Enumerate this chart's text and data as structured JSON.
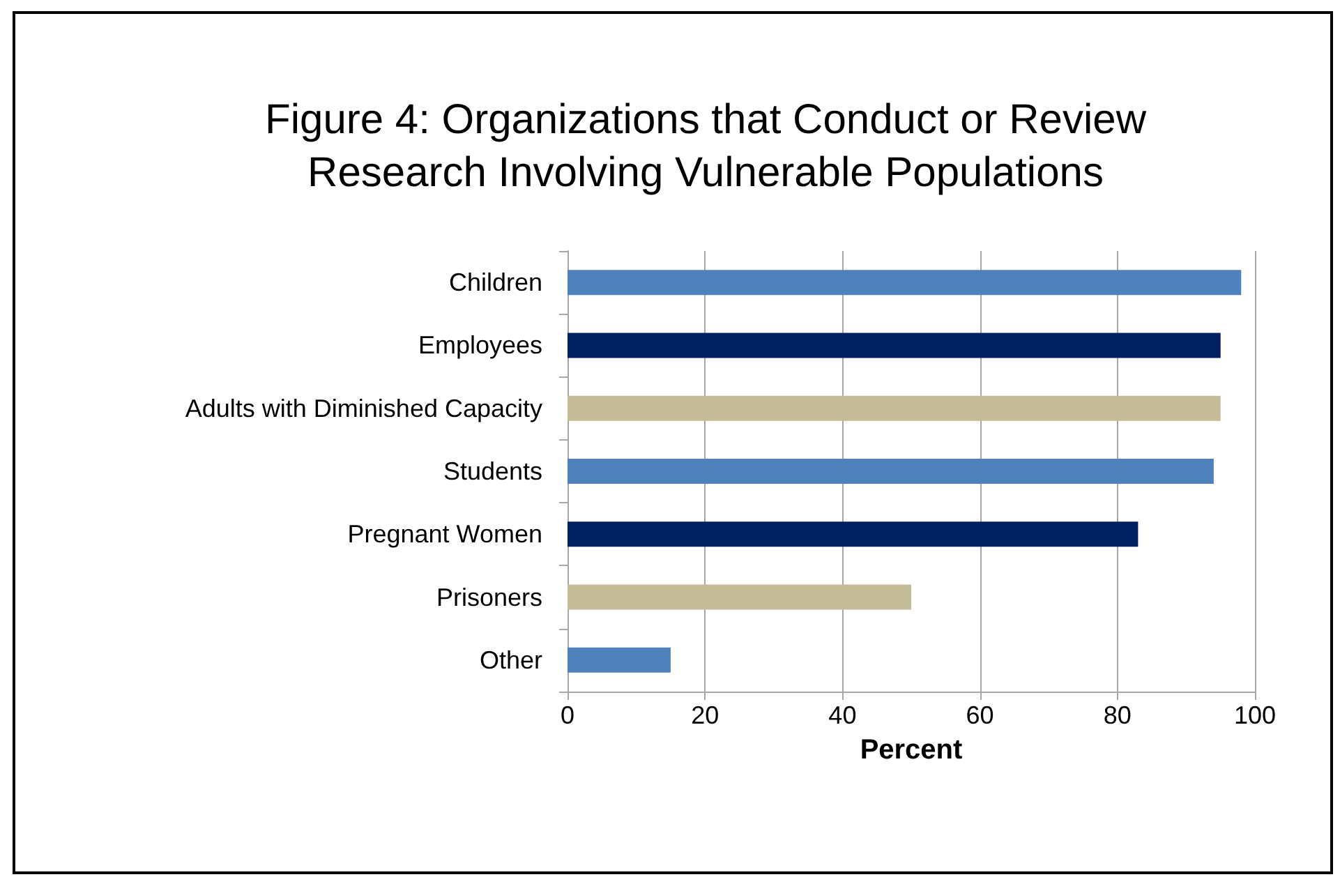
{
  "chart_data": {
    "type": "bar",
    "orientation": "horizontal",
    "title": "Figure 4: Organizations that Conduct or Review\nResearch Involving Vulnerable Populations",
    "xlabel": "Percent",
    "categories": [
      "Children",
      "Employees",
      "Adults with Diminished Capacity",
      "Students",
      "Pregnant Women",
      "Prisoners",
      "Other"
    ],
    "values": [
      98,
      95,
      95,
      94,
      83,
      50,
      15
    ],
    "colors": [
      "#4f81bd",
      "#002060",
      "#c4bd97",
      "#4f81bd",
      "#002060",
      "#c4bd97",
      "#4f81bd"
    ],
    "xlim": [
      0,
      100
    ],
    "xticks": [
      0,
      20,
      40,
      60,
      80,
      100
    ],
    "grid": "x"
  }
}
